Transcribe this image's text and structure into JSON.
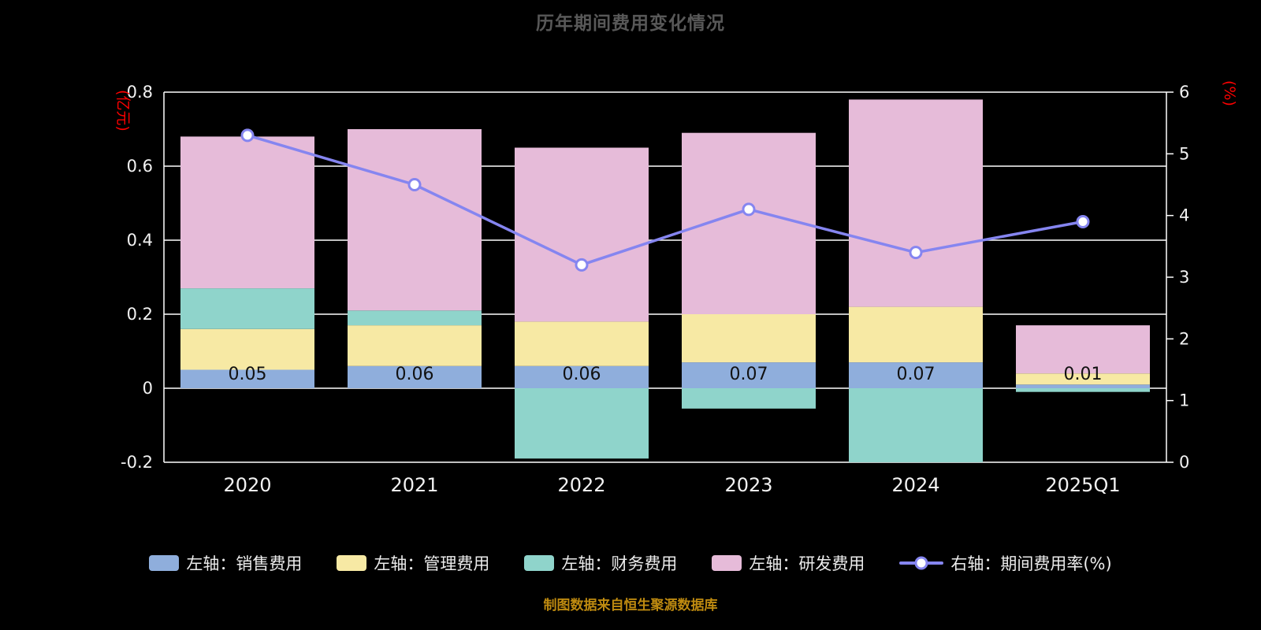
{
  "title": "历年期间费用变化情况",
  "source_note": "制图数据来自恒生聚源数据库",
  "left_axis": {
    "unit": "(亿元)",
    "ticks": [
      "0.8",
      "0.6",
      "0.4",
      "0.2",
      "0",
      "-0.2"
    ]
  },
  "right_axis": {
    "unit": "(%)",
    "ticks": [
      "6",
      "5",
      "4",
      "3",
      "2",
      "1",
      "0"
    ]
  },
  "chart_data": {
    "type": "bar",
    "subtype": "stacked-bars-with-line",
    "title": "历年期间费用变化情况",
    "categories": [
      "2020",
      "2021",
      "2022",
      "2023",
      "2024",
      "2025Q1"
    ],
    "series": [
      {
        "name": "左轴：销售费用",
        "type": "bar",
        "axis": "left",
        "color": "#8FAEDC",
        "values": [
          0.05,
          0.06,
          0.06,
          0.07,
          0.07,
          0.01
        ]
      },
      {
        "name": "左轴：管理费用",
        "type": "bar",
        "axis": "left",
        "color": "#F7E9A4",
        "values": [
          0.11,
          0.11,
          0.12,
          0.13,
          0.15,
          0.03
        ]
      },
      {
        "name": "左轴：财务费用",
        "type": "bar",
        "axis": "left",
        "color": "#8FD4CB",
        "values": [
          0.11,
          0.04,
          -0.19,
          -0.055,
          -0.21,
          -0.01
        ]
      },
      {
        "name": "左轴：研发费用",
        "type": "bar",
        "axis": "left",
        "color": "#E6BBD9",
        "values": [
          0.41,
          0.49,
          0.47,
          0.49,
          0.56,
          0.13
        ]
      },
      {
        "name": "右轴：期间费用率(%)",
        "type": "line",
        "axis": "right",
        "color": "#8585F0",
        "values": [
          5.3,
          4.5,
          3.2,
          4.1,
          3.4,
          3.9
        ]
      }
    ],
    "bar_labels": [
      "0.05",
      "0.06",
      "0.06",
      "0.07",
      "0.07",
      "0.01"
    ],
    "ylabel_left": "(亿元)",
    "ylabel_right": "(%)",
    "ylim_left": [
      -0.2,
      0.8
    ],
    "ylim_right": [
      0,
      6
    ],
    "grid": true,
    "legend_position": "bottom",
    "background": "#000000"
  },
  "colors": {
    "background": "#000000",
    "grid": "#FFFFFF",
    "axis_text": "#F2F2F2",
    "axis_unit": "#FF0000",
    "title": "#585858",
    "bar_label": "#111111",
    "legend_text": "#ECECEC",
    "source_text": "#BE8A10"
  }
}
